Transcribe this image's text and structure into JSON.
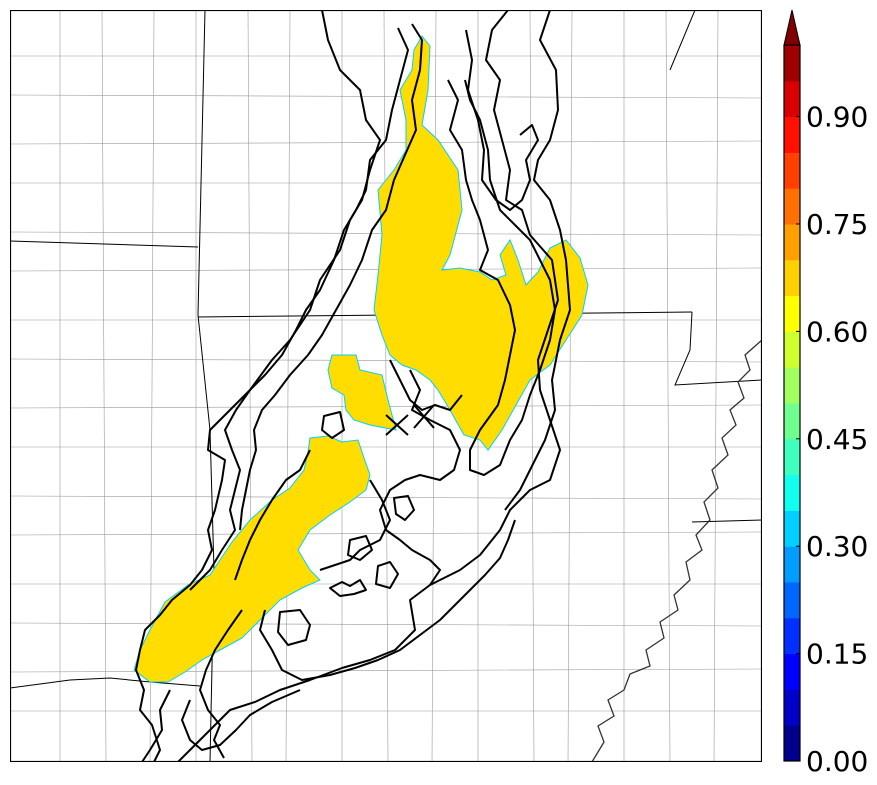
{
  "colorbar": {
    "tick_labels": [
      "0.00",
      "0.15",
      "0.30",
      "0.45",
      "0.60",
      "0.75",
      "0.90"
    ],
    "levels": [
      0.0,
      0.05,
      0.1,
      0.15,
      0.2,
      0.25,
      0.3,
      0.35,
      0.4,
      0.45,
      0.5,
      0.55,
      0.6,
      0.65,
      0.7,
      0.75,
      0.8,
      0.85,
      0.9,
      0.95,
      1.0
    ],
    "colors": [
      "#00008f",
      "#0000c8",
      "#0000ff",
      "#0030ff",
      "#0068ff",
      "#009cff",
      "#00d0ff",
      "#10ffee",
      "#40ffbf",
      "#70ff8f",
      "#a0ff5f",
      "#d0ff2f",
      "#ffff00",
      "#ffd000",
      "#ffa000",
      "#ff7000",
      "#ff4000",
      "#ff1000",
      "#d80000",
      "#a00000"
    ],
    "extend_color": "#800000"
  },
  "map": {
    "fill_color": "#ffdd00",
    "contour_color": "#000000",
    "county_line_color": "#9a9a9a",
    "state_line_color": "#000000"
  }
}
